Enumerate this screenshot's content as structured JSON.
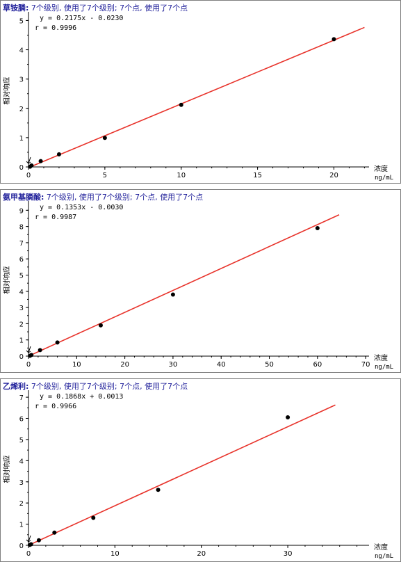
{
  "colors": {
    "fit_line": "#e8332b",
    "point": "#000000",
    "title": "#1f1f9a",
    "axis": "#000000"
  },
  "chart_data": [
    {
      "type": "scatter",
      "title": "草铵膦: 7个级别, 使用了7个级别; 7个点, 使用了7个点",
      "equation": "y = 0.2175x - 0.0230",
      "r": "r = 0.9996",
      "ylabel": "相对响应",
      "xlabel": "浓度",
      "xunit": "ng/mL",
      "xlim": [
        0,
        22.3
      ],
      "ylim": [
        0,
        5.2
      ],
      "xticks": [
        0,
        5,
        10,
        15,
        20
      ],
      "yticks": [
        0,
        1,
        2,
        3,
        4,
        5
      ],
      "points": {
        "x": [
          0.1,
          0.2,
          0.8,
          2,
          5,
          10,
          20
        ],
        "y": [
          0.01,
          0.05,
          0.2,
          0.43,
          0.99,
          2.12,
          4.36
        ]
      },
      "fit": {
        "slope": 0.2175,
        "intercept": -0.023,
        "x_range": [
          0,
          22
        ]
      }
    },
    {
      "type": "scatter",
      "title": "氨甲基膦酸: 7个级别, 使用了7个级别; 7个点, 使用了7个点",
      "equation": "y = 0.1353x - 0.0030",
      "r": "r = 0.9987",
      "ylabel": "相对响应",
      "xlabel": "浓度",
      "xunit": "ng/mL",
      "xlim": [
        0,
        70.7
      ],
      "ylim": [
        0,
        9.4
      ],
      "xticks": [
        0,
        10,
        20,
        30,
        40,
        50,
        60,
        70
      ],
      "yticks": [
        0,
        1,
        2,
        3,
        4,
        5,
        6,
        7,
        8,
        9
      ],
      "points": {
        "x": [
          0.3,
          0.6,
          2.4,
          6,
          15,
          30,
          60
        ],
        "y": [
          0.02,
          0.07,
          0.37,
          0.84,
          1.9,
          3.8,
          7.9
        ]
      },
      "fit": {
        "slope": 0.1353,
        "intercept": -0.003,
        "x_range": [
          0,
          64.5
        ]
      }
    },
    {
      "type": "scatter",
      "title": "乙烯利: 7个级别, 使用了7个级别; 7个点, 使用了7个点",
      "equation": "y = 0.1868x + 0.0013",
      "r": "r = 0.9966",
      "ylabel": "相对响应",
      "xlabel": "浓度",
      "xunit": "ng/mL",
      "xlim": [
        0,
        39.4
      ],
      "ylim": [
        0,
        7.2
      ],
      "xticks": [
        0,
        10,
        20,
        30
      ],
      "yticks": [
        0,
        1,
        2,
        3,
        4,
        5,
        6,
        7
      ],
      "points": {
        "x": [
          0.15,
          0.3,
          1.2,
          3,
          7.5,
          15,
          30
        ],
        "y": [
          0.02,
          0.05,
          0.24,
          0.6,
          1.3,
          2.62,
          6.05
        ]
      },
      "fit": {
        "slope": 0.1868,
        "intercept": 0.0013,
        "x_range": [
          0,
          35.5
        ]
      }
    }
  ]
}
